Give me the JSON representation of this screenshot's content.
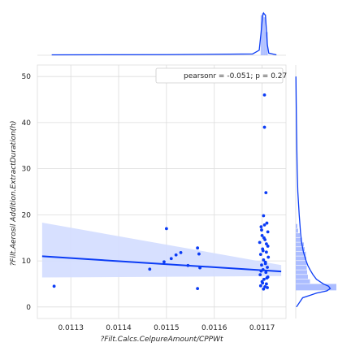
{
  "chart_data": {
    "type": "scatter",
    "kind": "jointplot-regression",
    "xlabel": "?Filt.Calcs.CelpureAmount/CPPWt",
    "ylabel": "?Filt.Aerosil Addition.ExtractDuration(h)",
    "x_ticks": [
      "0.0113",
      "0.0114",
      "0.0115",
      "0.0116",
      "0.0117"
    ],
    "y_ticks": [
      "0",
      "10",
      "20",
      "30",
      "40",
      "50"
    ],
    "xlim": [
      0.01123,
      0.01175
    ],
    "ylim": [
      -2.5,
      52.5
    ],
    "grid": true,
    "legend_position": "top-right",
    "annotation": "pearsonr = -0.051; p = 0.27",
    "colors": {
      "accent": "#0b3cf5",
      "band": "#d3ddff",
      "hist": "#9db1ff"
    },
    "points": [
      [
        0.011265,
        4.5
      ],
      [
        0.011465,
        8.2
      ],
      [
        0.011495,
        9.8
      ],
      [
        0.0115,
        17.0
      ],
      [
        0.01151,
        10.5
      ],
      [
        0.01152,
        11.3
      ],
      [
        0.01153,
        11.8
      ],
      [
        0.011545,
        9.0
      ],
      [
        0.011565,
        12.8
      ],
      [
        0.011568,
        11.5
      ],
      [
        0.011565,
        4.0
      ],
      [
        0.01157,
        8.5
      ],
      [
        0.011705,
        46.0
      ],
      [
        0.011705,
        39.0
      ],
      [
        0.011708,
        24.8
      ],
      [
        0.011703,
        19.8
      ],
      [
        0.01171,
        18.2
      ],
      [
        0.011698,
        17.4
      ],
      [
        0.011712,
        16.3
      ],
      [
        0.0117,
        15.5
      ],
      [
        0.011706,
        14.6
      ],
      [
        0.011695,
        14.0
      ],
      [
        0.011712,
        13.2
      ],
      [
        0.011701,
        12.6
      ],
      [
        0.011709,
        11.9
      ],
      [
        0.011697,
        11.4
      ],
      [
        0.011713,
        10.8
      ],
      [
        0.011703,
        10.2
      ],
      [
        0.011707,
        9.7
      ],
      [
        0.011699,
        9.1
      ],
      [
        0.011711,
        8.6
      ],
      [
        0.011702,
        8.1
      ],
      [
        0.011708,
        7.5
      ],
      [
        0.011696,
        7.0
      ],
      [
        0.011712,
        6.5
      ],
      [
        0.011704,
        6.0
      ],
      [
        0.0117,
        5.5
      ],
      [
        0.011709,
        5.0
      ],
      [
        0.011697,
        4.6
      ],
      [
        0.011711,
        4.2
      ],
      [
        0.011703,
        3.9
      ],
      [
        0.011706,
        4.4
      ],
      [
        0.011701,
        5.2
      ],
      [
        0.01171,
        6.3
      ],
      [
        0.011698,
        7.8
      ],
      [
        0.011707,
        9.4
      ],
      [
        0.011702,
        12.2
      ],
      [
        0.011709,
        13.7
      ],
      [
        0.011704,
        15.0
      ],
      [
        0.011699,
        16.7
      ],
      [
        0.011705,
        17.8
      ]
    ],
    "regression": {
      "x": [
        0.01124,
        0.01174
      ],
      "y": [
        11.0,
        7.7
      ]
    },
    "ci_band": {
      "x": [
        0.01124,
        0.01174
      ],
      "upper": [
        18.3,
        9.1
      ],
      "lower": [
        6.4,
        6.7
      ]
    },
    "top_kde": {
      "x": [
        0.01126,
        0.0115,
        0.01168,
        0.011694,
        0.011698,
        0.011701,
        0.011703,
        0.011705,
        0.011707,
        0.011709,
        0.011711,
        0.011714,
        0.01173
      ],
      "density": [
        0.01,
        0.015,
        0.03,
        0.12,
        0.55,
        0.93,
        1.0,
        0.97,
        0.95,
        0.6,
        0.25,
        0.05,
        0.01
      ]
    },
    "top_hist": [
      {
        "x0": 0.011697,
        "x1": 0.0117,
        "density": 0.95
      },
      {
        "x0": 0.0117,
        "x1": 0.011703,
        "density": 1.0
      },
      {
        "x0": 0.011703,
        "x1": 0.011707,
        "density": 0.9
      },
      {
        "x0": 0.011707,
        "x1": 0.011712,
        "density": 0.55
      }
    ],
    "right_kde": {
      "y": [
        0,
        2,
        3,
        3.5,
        4,
        4.5,
        5,
        6,
        7,
        8,
        9,
        10,
        12,
        14,
        16,
        18,
        20,
        25,
        30,
        40,
        50
      ],
      "density": [
        0.02,
        0.2,
        0.6,
        0.9,
        1.0,
        0.95,
        0.8,
        0.6,
        0.5,
        0.42,
        0.35,
        0.3,
        0.22,
        0.17,
        0.14,
        0.12,
        0.1,
        0.06,
        0.04,
        0.02,
        0.005
      ]
    },
    "right_hist": [
      {
        "y0": 3.5,
        "y1": 5,
        "density": 1.0
      },
      {
        "y0": 5,
        "y1": 6,
        "density": 0.35
      },
      {
        "y0": 6,
        "y1": 7,
        "density": 0.3
      },
      {
        "y0": 7,
        "y1": 8,
        "density": 0.28
      },
      {
        "y0": 8,
        "y1": 9,
        "density": 0.27
      },
      {
        "y0": 9,
        "y1": 10,
        "density": 0.27
      },
      {
        "y0": 10,
        "y1": 11,
        "density": 0.26
      },
      {
        "y0": 11,
        "y1": 12,
        "density": 0.25
      },
      {
        "y0": 12,
        "y1": 13,
        "density": 0.22
      },
      {
        "y0": 13,
        "y1": 14,
        "density": 0.2
      },
      {
        "y0": 14,
        "y1": 15,
        "density": 0.15
      },
      {
        "y0": 15,
        "y1": 16,
        "density": 0.1
      },
      {
        "y0": 16,
        "y1": 17,
        "density": 0.06
      },
      {
        "y0": 17,
        "y1": 18,
        "density": 0.04
      }
    ]
  }
}
